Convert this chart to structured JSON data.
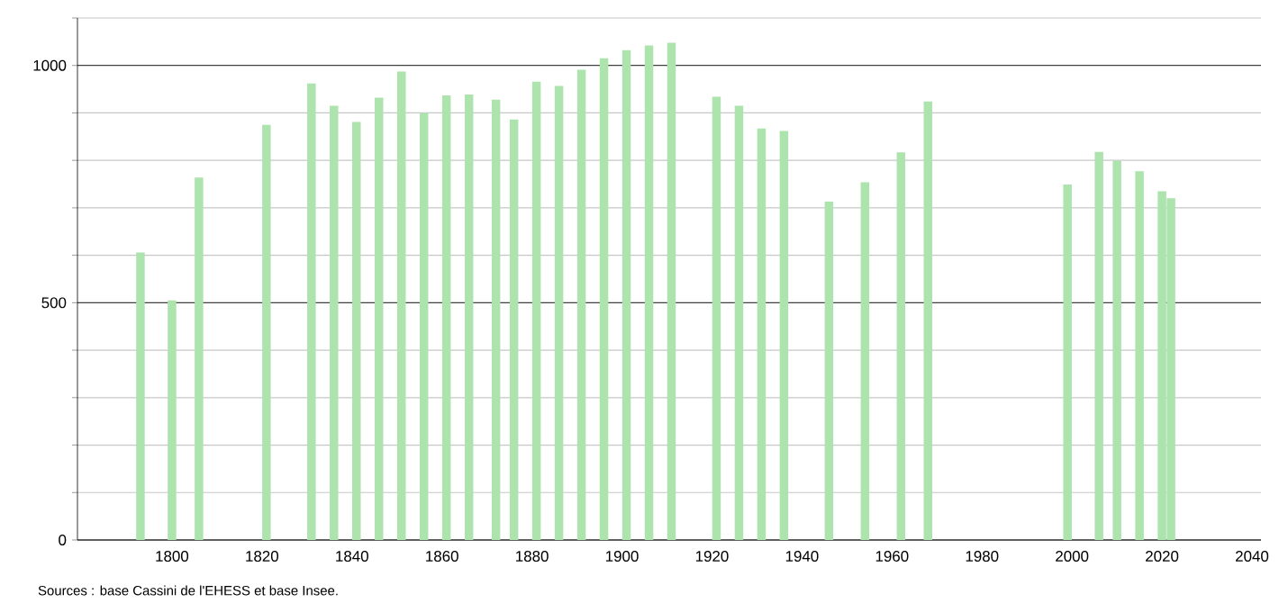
{
  "chart_data": {
    "type": "bar",
    "x": [
      1793,
      1800,
      1806,
      1821,
      1831,
      1836,
      1841,
      1846,
      1851,
      1856,
      1861,
      1866,
      1872,
      1876,
      1881,
      1886,
      1891,
      1896,
      1901,
      1906,
      1911,
      1921,
      1926,
      1931,
      1936,
      1946,
      1954,
      1962,
      1968,
      1999,
      2006,
      2010,
      2015,
      2020,
      2022
    ],
    "values": [
      606,
      505,
      764,
      875,
      962,
      915,
      881,
      932,
      987,
      900,
      937,
      939,
      928,
      886,
      966,
      957,
      991,
      1015,
      1032,
      1042,
      1048,
      934,
      915,
      867,
      862,
      713,
      754,
      817,
      924,
      749,
      818,
      799,
      777,
      735,
      720
    ],
    "color": "#ade3ad",
    "xlim": [
      1779,
      2042
    ],
    "ylim": [
      0,
      1100
    ],
    "xticks": [
      1800,
      1820,
      1840,
      1860,
      1880,
      1900,
      1920,
      1940,
      1960,
      1980,
      2000,
      2020,
      2040
    ],
    "yticks": [
      0,
      {
        "value": 100,
        "label": null
      },
      {
        "value": 200,
        "label": null
      },
      {
        "value": 300,
        "label": null
      },
      {
        "value": 400,
        "label": null
      },
      500,
      {
        "value": 600,
        "label": null
      },
      {
        "value": 700,
        "label": null
      },
      {
        "value": 800,
        "label": null
      },
      {
        "value": 900,
        "label": null
      },
      1000,
      {
        "value": 1100,
        "label": null
      }
    ],
    "grid": "y",
    "annotations": [
      "Sources : base Cassini de l'EHESS et base Insee."
    ]
  }
}
